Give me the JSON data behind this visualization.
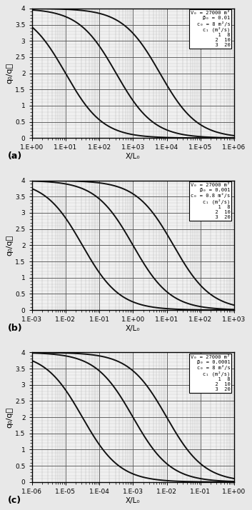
{
  "panels": [
    {
      "label": "(a)",
      "xlim_log": [
        0,
        6
      ],
      "xticks_exp": [
        0,
        1,
        2,
        3,
        4,
        5,
        6
      ],
      "xtick_labels": [
        "1.E+00",
        "1.E+01",
        "1.E+02",
        "1.E+03",
        "1.E+04",
        "1.E+05",
        "1.E+06"
      ],
      "legend_lines": [
        "V₀ = 27000 m²",
        "β₀ = 0.01",
        "c₀ = 8 m²/s",
        "c₁ (m²/s)",
        "  1  8",
        "  2  10",
        "  3  20"
      ],
      "curve_shifts": [
        1.0,
        2.5,
        3.8
      ],
      "steepness": [
        1.8,
        1.8,
        1.8
      ],
      "xlabel": "X/L₀"
    },
    {
      "label": "(b)",
      "xlim_log": [
        -3,
        3
      ],
      "xticks_exp": [
        -3,
        -2,
        -1,
        0,
        1,
        2,
        3
      ],
      "xtick_labels": [
        "1.E-03",
        "1.E-02",
        "1.E-01",
        "1.E+00",
        "1.E+01",
        "1.E+02",
        "1.E+03"
      ],
      "legend_lines": [
        "V₀ = 27000 m²",
        "β₀ = 0.001",
        "c₀ = 0.8 m²/s",
        "c₁ (m²/s)",
        "  1  8",
        "  2  10",
        "  3  20"
      ],
      "curve_shifts": [
        -1.5,
        0.0,
        1.2
      ],
      "steepness": [
        1.8,
        1.8,
        1.8
      ],
      "xlabel": "X/L₀"
    },
    {
      "label": "(c)",
      "xlim_log": [
        -6,
        0
      ],
      "xticks_exp": [
        -6,
        -5,
        -4,
        -3,
        -2,
        -1,
        0
      ],
      "xtick_labels": [
        "1.E-06",
        "1.E-05",
        "1.E-04",
        "1.E-03",
        "1.E-02",
        "1.E-01",
        "1.E+00"
      ],
      "legend_lines": [
        "V₀ = 27000 m²",
        "β₀ = 0.0001",
        "c₀ = 8 m²/s",
        "c₁ (m²/s)",
        "  1  8",
        "  2  10",
        "  3  20"
      ],
      "curve_shifts": [
        -4.5,
        -3.0,
        -2.0
      ],
      "steepness": [
        1.8,
        1.8,
        1.8
      ],
      "xlabel": "X/L₀"
    }
  ],
  "ylim": [
    0,
    4
  ],
  "yticks": [
    0,
    0.5,
    1.0,
    1.5,
    2.0,
    2.5,
    3.0,
    3.5,
    4.0
  ],
  "ytick_labels": [
    "0",
    "0.5",
    "1",
    "1.5",
    "2",
    "2.5",
    "3",
    "3.5",
    "4"
  ],
  "ylabel": "q₀/q⁲",
  "curve_color": "#111111",
  "bg_color": "#f0f0f0",
  "major_grid_color": "#555555",
  "minor_grid_color": "#aaaaaa"
}
